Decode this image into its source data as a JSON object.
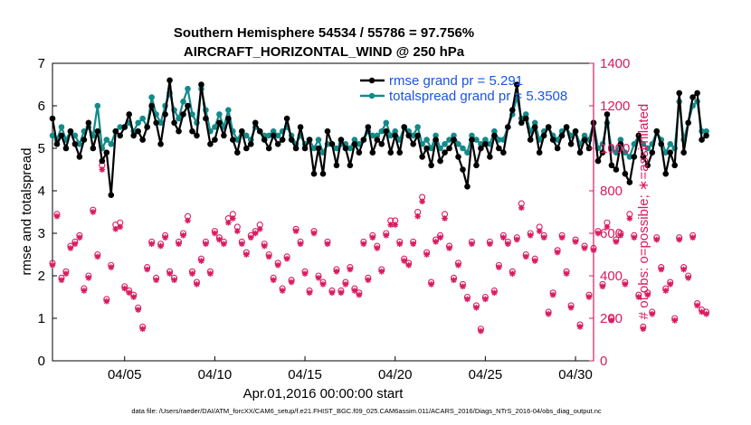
{
  "chart_data": {
    "type": "line",
    "title_line1": "Southern Hemisphere 54534 / 55786 = 97.756%",
    "title_line2": "AIRCRAFT_HORIZONTAL_WIND @ 250 hPa",
    "xlabel": "Apr.01,2016 00:00:00 start",
    "ylabel_left": "rmse and totalspread",
    "ylabel_right": "# of obs: o=possible; ∗=assimilated",
    "footer": "data file: /Users/raeder/DAI/ATM_forcXX/CAM6_setup/f.e21.FHIST_BGC.f09_025.CAM6assim.011/ACARS_2016/Diags_NTrS_2016-04/obs_diag_output.nc",
    "x_days_range": [
      1,
      31
    ],
    "xticks": [
      {
        "day": 5,
        "label": "04/05"
      },
      {
        "day": 10,
        "label": "04/10"
      },
      {
        "day": 15,
        "label": "04/15"
      },
      {
        "day": 20,
        "label": "04/20"
      },
      {
        "day": 25,
        "label": "04/25"
      },
      {
        "day": 30,
        "label": "04/30"
      }
    ],
    "ylim_left": [
      0,
      7
    ],
    "yticks_left": [
      "0",
      "1",
      "2",
      "3",
      "4",
      "5",
      "6",
      "7"
    ],
    "ylim_right": [
      0,
      1400
    ],
    "yticks_right": [
      "0",
      "200",
      "400",
      "600",
      "800",
      "1000",
      "1200",
      "1400"
    ],
    "legend": [
      {
        "label": "rmse grand pr = 5.291",
        "color": "#000000"
      },
      {
        "label": "totalspread grand pr = 5.3508",
        "color": "#138a8a"
      }
    ],
    "colors": {
      "rmse": "#000000",
      "spread": "#138a8a",
      "obs": "#d81b60"
    },
    "series": [
      {
        "name": "rmse",
        "x_start_day": 1,
        "x_step_days": 0.25,
        "values": [
          5.7,
          5.1,
          5.3,
          5.0,
          5.4,
          5.1,
          4.8,
          5.2,
          5.6,
          5.0,
          5.4,
          4.7,
          4.9,
          3.9,
          5.4,
          5.3,
          5.5,
          5.8,
          5.3,
          5.4,
          5.2,
          5.5,
          6.0,
          5.6,
          5.1,
          5.8,
          6.6,
          5.6,
          5.4,
          5.8,
          6.0,
          5.4,
          5.3,
          6.5,
          5.7,
          5.1,
          5.2,
          5.6,
          5.3,
          5.7,
          5.2,
          4.9,
          5.4,
          5.0,
          5.1,
          5.6,
          5.4,
          5.2,
          5.0,
          5.3,
          5.1,
          5.2,
          5.7,
          5.2,
          5.0,
          5.5,
          5.0,
          5.2,
          4.4,
          5.0,
          4.4,
          5.4,
          5.1,
          4.6,
          5.2,
          5.0,
          4.6,
          5.1,
          4.9,
          5.2,
          5.5,
          4.9,
          5.2,
          5.1,
          5.4,
          4.9,
          5.3,
          4.9,
          5.5,
          5.3,
          5.1,
          5.3,
          4.8,
          5.0,
          4.6,
          5.2,
          4.7,
          4.9,
          5.0,
          5.2,
          4.8,
          4.5,
          4.1,
          5.2,
          4.6,
          5.0,
          5.1,
          4.8,
          5.3,
          5.0,
          4.9,
          5.5,
          5.9,
          6.5,
          5.6,
          5.7,
          5.2,
          5.5,
          4.9,
          5.3,
          5.5,
          5.2,
          5.0,
          5.3,
          5.5,
          5.1,
          5.4,
          4.9,
          5.2,
          5.0,
          5.6,
          4.7,
          4.9,
          5.8,
          4.6,
          4.5,
          5.1,
          4.4,
          4.2,
          4.8,
          5.3,
          4.8,
          4.6,
          4.9,
          5.4,
          5.1,
          4.4,
          4.9,
          4.6,
          6.3,
          4.9,
          5.6,
          6.2,
          6.3,
          5.2,
          5.3
        ],
        "markers": [
          5.7,
          5.1,
          5.3,
          5.0,
          5.4,
          5.1,
          4.8,
          5.2,
          5.6,
          5.0,
          5.4,
          4.7,
          4.9,
          3.9,
          5.4,
          5.3,
          5.5,
          5.8,
          5.3,
          5.4,
          5.2,
          5.5,
          6.0,
          5.6,
          5.1,
          5.8,
          6.6,
          5.6,
          5.4,
          5.8,
          6.0,
          5.4,
          5.3,
          6.5,
          5.7,
          5.1,
          5.2,
          5.6,
          5.3,
          5.7,
          5.2,
          4.9,
          5.4,
          5.0,
          5.1,
          5.6,
          5.4,
          5.2,
          5.0,
          5.3,
          5.1,
          5.2,
          5.7,
          5.2,
          5.0,
          5.5,
          5.0,
          5.2,
          4.4,
          5.0,
          4.4,
          5.4,
          5.1,
          4.6,
          5.2,
          5.0,
          4.6,
          5.1,
          4.9,
          5.2,
          5.5,
          4.9,
          5.2,
          5.1,
          5.4,
          4.9,
          5.3,
          4.9,
          5.5,
          5.3,
          5.1,
          5.3,
          4.8,
          5.0,
          4.6,
          5.2,
          4.7,
          4.9,
          5.0,
          5.2,
          4.8,
          4.5,
          4.1,
          5.2,
          4.6,
          5.0,
          5.1,
          4.8,
          5.3,
          5.0,
          4.9,
          5.5,
          5.9,
          6.5,
          5.6,
          5.7,
          5.2,
          5.5,
          4.9,
          5.3,
          5.5,
          5.2,
          5.0,
          5.3,
          5.5,
          5.1,
          5.4,
          4.9,
          5.2,
          5.0,
          5.6,
          4.7,
          4.9,
          5.8,
          4.6,
          4.5,
          5.1,
          4.4,
          4.2,
          4.8,
          5.3,
          4.8,
          4.6,
          4.9,
          5.4,
          5.1,
          4.4,
          4.9,
          4.6,
          6.3,
          4.9,
          5.6,
          6.2,
          6.3,
          5.2,
          5.3
        ]
      },
      {
        "name": "totalspread",
        "x_start_day": 1,
        "x_step_days": 0.25,
        "values": [
          5.3,
          5.2,
          5.5,
          5.2,
          5.4,
          5.3,
          5.1,
          5.4,
          5.5,
          5.3,
          6.0,
          5.0,
          5.2,
          5.1,
          5.4,
          5.5,
          5.5,
          5.6,
          5.4,
          5.6,
          5.7,
          5.5,
          6.2,
          5.8,
          5.6,
          6.0,
          6.3,
          5.9,
          5.7,
          6.1,
          6.4,
          5.8,
          5.6,
          6.4,
          5.9,
          5.4,
          5.5,
          5.8,
          5.5,
          5.9,
          5.4,
          5.2,
          5.4,
          5.3,
          5.2,
          5.5,
          5.4,
          5.3,
          5.3,
          5.4,
          5.3,
          5.4,
          5.5,
          5.3,
          5.1,
          5.3,
          5.1,
          5.2,
          5.0,
          5.2,
          4.9,
          5.1,
          5.1,
          5.0,
          5.1,
          5.1,
          5.0,
          5.2,
          5.1,
          5.2,
          5.4,
          5.3,
          5.3,
          5.4,
          5.6,
          5.3,
          5.4,
          5.2,
          5.5,
          5.4,
          5.3,
          5.5,
          5.1,
          5.2,
          5.0,
          5.3,
          5.0,
          5.1,
          5.2,
          5.3,
          5.1,
          5.0,
          4.9,
          5.3,
          5.2,
          5.1,
          5.2,
          5.1,
          5.4,
          5.2,
          5.2,
          5.5,
          5.8,
          6.2,
          5.7,
          5.8,
          5.4,
          5.6,
          5.2,
          5.4,
          5.5,
          5.3,
          5.2,
          5.4,
          5.5,
          5.3,
          5.4,
          5.1,
          5.3,
          5.2,
          5.6,
          5.0,
          5.1,
          5.6,
          5.0,
          4.9,
          5.2,
          4.9,
          4.8,
          5.1,
          5.3,
          5.1,
          5.0,
          5.1,
          5.4,
          5.2,
          4.9,
          5.1,
          5.0,
          6.1,
          5.2,
          5.6,
          6.0,
          6.1,
          5.4,
          5.4
        ],
        "markers": [
          5.3,
          5.2,
          5.5,
          5.2,
          5.4,
          5.3,
          5.1,
          5.4,
          5.5,
          5.3,
          6.0,
          5.0,
          5.2,
          5.1,
          5.4,
          5.5,
          5.5,
          5.6,
          5.4,
          5.6,
          5.7,
          5.5,
          6.2,
          5.8,
          5.6,
          6.0,
          6.3,
          5.9,
          5.7,
          6.1,
          6.4,
          5.8,
          5.6,
          6.4,
          5.9,
          5.4,
          5.5,
          5.8,
          5.5,
          5.9,
          5.4,
          5.2,
          5.4,
          5.3,
          5.2,
          5.5,
          5.4,
          5.3,
          5.3,
          5.4,
          5.3,
          5.4,
          5.5,
          5.3,
          5.1,
          5.3,
          5.1,
          5.2,
          5.0,
          5.2,
          4.9,
          5.1,
          5.1,
          5.0,
          5.1,
          5.1,
          5.0,
          5.2,
          5.1,
          5.2,
          5.4,
          5.3,
          5.3,
          5.4,
          5.6,
          5.3,
          5.4,
          5.2,
          5.5,
          5.4,
          5.3,
          5.5,
          5.1,
          5.2,
          5.0,
          5.3,
          5.0,
          5.1,
          5.2,
          5.3,
          5.1,
          5.0,
          4.9,
          5.3,
          5.2,
          5.1,
          5.2,
          5.1,
          5.4,
          5.2,
          5.2,
          5.5,
          5.8,
          6.2,
          5.7,
          5.8,
          5.4,
          5.6,
          5.2,
          5.4,
          5.5,
          5.3,
          5.2,
          5.4,
          5.5,
          5.3,
          5.4,
          5.1,
          5.3,
          5.2,
          5.6,
          5.0,
          5.1,
          5.6,
          5.0,
          4.9,
          5.2,
          4.9,
          4.8,
          5.1,
          5.3,
          5.1,
          5.0,
          5.1,
          5.4,
          5.2,
          4.9,
          5.1,
          5.0,
          6.1,
          5.2,
          5.6,
          6.0,
          6.1,
          5.4,
          5.4
        ]
      },
      {
        "name": "obs_possible",
        "axis": "right",
        "x_start_day": 1,
        "x_step_days": 0.25,
        "values": [
          460,
          690,
          390,
          420,
          540,
          560,
          590,
          340,
          400,
          710,
          500,
          920,
          290,
          450,
          640,
          650,
          350,
          330,
          310,
          250,
          160,
          440,
          560,
          390,
          550,
          590,
          420,
          390,
          560,
          600,
          680,
          420,
          370,
          480,
          560,
          420,
          610,
          580,
          560,
          670,
          690,
          630,
          560,
          510,
          590,
          610,
          640,
          550,
          500,
          390,
          460,
          340,
          490,
          380,
          620,
          560,
          420,
          330,
          610,
          400,
          370,
          560,
          330,
          430,
          330,
          370,
          440,
          340,
          320,
          560,
          390,
          590,
          540,
          430,
          600,
          660,
          660,
          560,
          480,
          460,
          560,
          700,
          770,
          510,
          370,
          570,
          590,
          690,
          540,
          390,
          460,
          360,
          300,
          560,
          260,
          150,
          300,
          560,
          330,
          450,
          590,
          560,
          420,
          580,
          740,
          500,
          600,
          480,
          630,
          590,
          230,
          320,
          520,
          590,
          420,
          260,
          570,
          170,
          540,
          310,
          530,
          610,
          360,
          650,
          200,
          570,
          600,
          370,
          690,
          590,
          310,
          160,
          320,
          230,
          580,
          440,
          340,
          370,
          200,
          580,
          440,
          400,
          590,
          270,
          240,
          230
        ],
        "markers": [
          460,
          690,
          390,
          420,
          540,
          560,
          590,
          340,
          400,
          710,
          500,
          920,
          290,
          450,
          640,
          650,
          350,
          330,
          310,
          250,
          160,
          440,
          560,
          390,
          550,
          590,
          420,
          390,
          560,
          600,
          680,
          420,
          370,
          480,
          560,
          420,
          610,
          580,
          560,
          670,
          690,
          630,
          560,
          510,
          590,
          610,
          640,
          550,
          500,
          390,
          460,
          340,
          490,
          380,
          620,
          560,
          420,
          330,
          610,
          400,
          370,
          560,
          330,
          430,
          330,
          370,
          440,
          340,
          320,
          560,
          390,
          590,
          540,
          430,
          600,
          660,
          660,
          560,
          480,
          460,
          560,
          700,
          770,
          510,
          370,
          570,
          590,
          690,
          540,
          390,
          460,
          360,
          300,
          560,
          260,
          150,
          300,
          560,
          330,
          450,
          590,
          560,
          420,
          580,
          740,
          500,
          600,
          480,
          630,
          590,
          230,
          320,
          520,
          590,
          420,
          260,
          570,
          170,
          540,
          310,
          530,
          610,
          360,
          650,
          200,
          570,
          600,
          370,
          690,
          590,
          310,
          160,
          320,
          230,
          580,
          440,
          340,
          370,
          200,
          580,
          440,
          400,
          590,
          270,
          240,
          230
        ]
      },
      {
        "name": "obs_assimilated",
        "axis": "right",
        "x_start_day": 1,
        "x_step_days": 0.25,
        "values": [
          450,
          680,
          380,
          410,
          530,
          550,
          580,
          330,
          390,
          700,
          490,
          900,
          280,
          440,
          620,
          630,
          340,
          320,
          300,
          240,
          150,
          430,
          550,
          380,
          540,
          580,
          410,
          380,
          550,
          590,
          660,
          410,
          360,
          470,
          550,
          410,
          600,
          570,
          550,
          650,
          670,
          610,
          550,
          500,
          580,
          600,
          620,
          540,
          490,
          380,
          450,
          330,
          480,
          370,
          610,
          550,
          410,
          320,
          600,
          390,
          360,
          550,
          320,
          420,
          320,
          360,
          430,
          330,
          310,
          550,
          380,
          580,
          530,
          420,
          590,
          640,
          640,
          550,
          470,
          450,
          550,
          680,
          750,
          500,
          360,
          560,
          580,
          670,
          530,
          380,
          450,
          350,
          290,
          550,
          250,
          140,
          290,
          550,
          320,
          440,
          580,
          550,
          410,
          570,
          720,
          490,
          590,
          470,
          610,
          580,
          220,
          310,
          510,
          580,
          410,
          250,
          560,
          160,
          530,
          300,
          520,
          600,
          350,
          630,
          190,
          560,
          590,
          360,
          670,
          580,
          300,
          150,
          310,
          220,
          570,
          430,
          330,
          360,
          190,
          570,
          430,
          390,
          580,
          260,
          230,
          220
        ],
        "markers": [
          450,
          680,
          380,
          410,
          530,
          550,
          580,
          330,
          390,
          700,
          490,
          900,
          280,
          440,
          620,
          630,
          340,
          320,
          300,
          240,
          150,
          430,
          550,
          380,
          540,
          580,
          410,
          380,
          550,
          590,
          660,
          410,
          360,
          470,
          550,
          410,
          600,
          570,
          550,
          650,
          670,
          610,
          550,
          500,
          580,
          600,
          620,
          540,
          490,
          380,
          450,
          330,
          480,
          370,
          610,
          550,
          410,
          320,
          600,
          390,
          360,
          550,
          320,
          420,
          320,
          360,
          430,
          330,
          310,
          550,
          380,
          580,
          530,
          420,
          590,
          640,
          640,
          550,
          470,
          450,
          550,
          680,
          750,
          500,
          360,
          560,
          580,
          670,
          530,
          380,
          450,
          350,
          290,
          550,
          250,
          140,
          290,
          550,
          320,
          440,
          580,
          550,
          410,
          570,
          720,
          490,
          590,
          470,
          610,
          580,
          220,
          310,
          510,
          580,
          410,
          250,
          560,
          160,
          530,
          300,
          520,
          600,
          350,
          630,
          190,
          560,
          590,
          360,
          670,
          580,
          300,
          150,
          310,
          220,
          570,
          430,
          330,
          360,
          190,
          570,
          430,
          390,
          580,
          260,
          230,
          220
        ]
      }
    ]
  }
}
